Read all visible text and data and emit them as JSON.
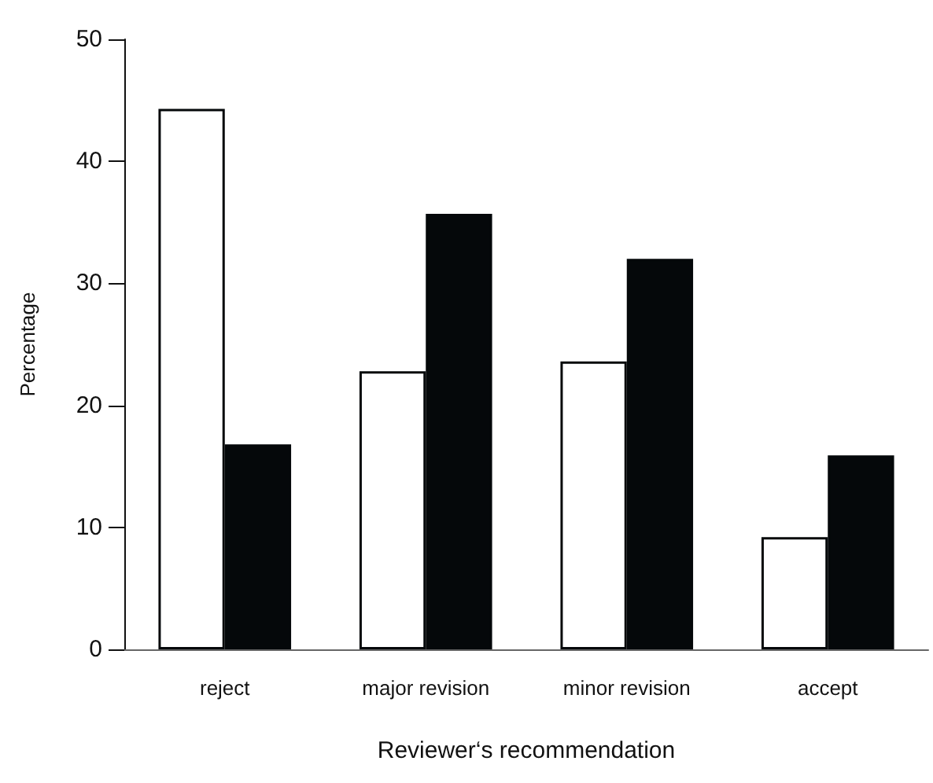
{
  "chart_data": {
    "type": "bar",
    "xlabel": "Reviewer‘s recommendation",
    "ylabel": "Percentage",
    "categories": [
      "reject",
      "major revision",
      "minor revision",
      "accept"
    ],
    "series": [
      {
        "color": "#ffffff",
        "values": [
          44.3,
          22.8,
          23.6,
          9.2
        ]
      },
      {
        "color": "#05080a",
        "values": [
          16.8,
          35.7,
          32.0,
          15.9
        ]
      }
    ],
    "ylim": [
      0,
      50
    ],
    "yticks": [
      0,
      10,
      20,
      30,
      40,
      50
    ],
    "grid": false
  }
}
